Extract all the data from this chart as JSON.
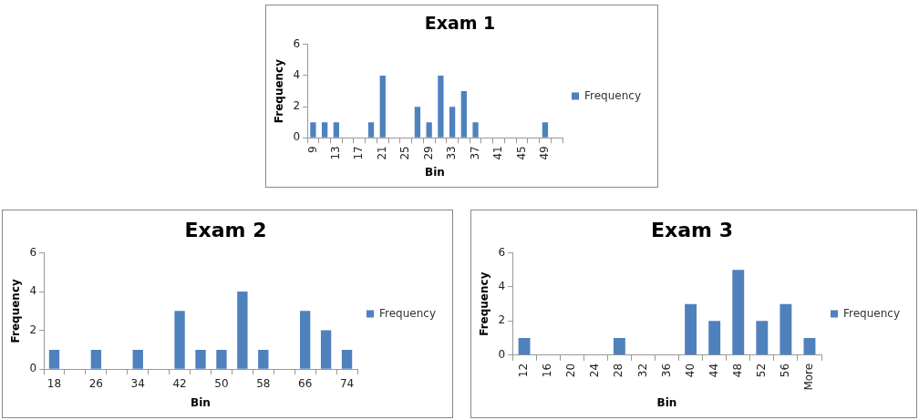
{
  "chart_data": [
    {
      "type": "bar",
      "title": "Exam 1",
      "xlabel": "Bin",
      "ylabel": "Frequency",
      "categories": [
        "9",
        null,
        "13",
        null,
        "17",
        null,
        "21",
        null,
        "25",
        null,
        "29",
        null,
        "33",
        null,
        "37",
        null,
        "41",
        null,
        "45",
        null,
        "49",
        null
      ],
      "series": [
        {
          "name": "Frequency",
          "color": "#4f81bd",
          "values": [
            1,
            1,
            1,
            0,
            0,
            1,
            4,
            0,
            0,
            2,
            1,
            4,
            2,
            3,
            1,
            0,
            0,
            0,
            0,
            0,
            1,
            0
          ]
        }
      ],
      "ylim": [
        0,
        6
      ],
      "yticks": [
        0,
        2,
        4,
        6
      ],
      "grid": false,
      "legend": "right"
    },
    {
      "type": "bar",
      "title": "Exam 2",
      "xlabel": "Bin",
      "ylabel": "Frequency",
      "categories": [
        "18",
        null,
        "26",
        null,
        "34",
        null,
        "42",
        null,
        "50",
        null,
        "58",
        null,
        "66",
        null,
        "74"
      ],
      "series": [
        {
          "name": "Frequency",
          "color": "#4f81bd",
          "values": [
            1,
            0,
            1,
            0,
            1,
            0,
            3,
            1,
            1,
            4,
            1,
            0,
            3,
            2,
            1
          ]
        }
      ],
      "ylim": [
        0,
        6
      ],
      "yticks": [
        0,
        2,
        4,
        6
      ],
      "grid": false,
      "legend": "right"
    },
    {
      "type": "bar",
      "title": "Exam 3",
      "xlabel": "Bin",
      "ylabel": "Frequency",
      "categories": [
        "12",
        "16",
        "20",
        "24",
        "28",
        "32",
        "36",
        "40",
        "44",
        "48",
        "52",
        "56",
        "More"
      ],
      "series": [
        {
          "name": "Frequency",
          "color": "#4f81bd",
          "values": [
            1,
            0,
            0,
            0,
            1,
            0,
            0,
            3,
            2,
            5,
            2,
            3,
            1
          ]
        }
      ],
      "ylim": [
        0,
        6
      ],
      "yticks": [
        0,
        2,
        4,
        6
      ],
      "grid": false,
      "legend": "right"
    }
  ]
}
